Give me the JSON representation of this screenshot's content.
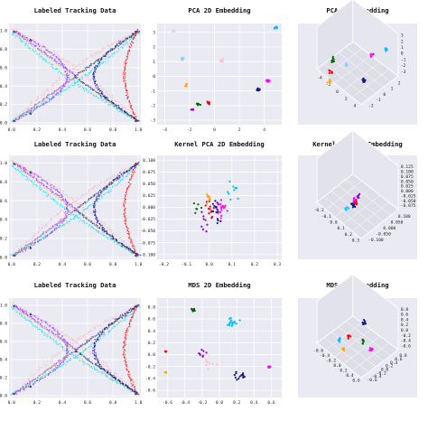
{
  "figure": {
    "background": "#ffffff",
    "panel_background": "#eaeaf2",
    "grid_color": "#ffffff"
  },
  "chart_data": [
    {
      "type": "scatter",
      "kind": "tracking",
      "title": "Labeled Tracking Data",
      "xticks": [
        "0.0",
        "0.2",
        "0.4",
        "0.6",
        "0.8",
        "1.0"
      ],
      "yticks": [
        "0.0",
        "0.2",
        "0.4",
        "0.6",
        "0.8",
        "1.0"
      ],
      "xlim": [
        -0.02,
        1.02
      ],
      "ylim": [
        -0.02,
        1.08
      ],
      "grid": true,
      "series": [
        {
          "color": "#ffb6c1",
          "path": "x-cross-outer"
        },
        {
          "color": "#00e5ee",
          "path": "x-cross-left-wing"
        },
        {
          "color": "#9b30ff",
          "path": "left-loop"
        },
        {
          "color": "#00008b",
          "path": "right-wing"
        },
        {
          "color": "#ff0000",
          "path": "right-edge"
        },
        {
          "color": "#c8c864",
          "path": "x-diagonal"
        },
        {
          "color": "#555555",
          "path": "corners"
        }
      ]
    },
    {
      "type": "scatter",
      "kind": "embed2d",
      "title": "PCA 2D Embedding",
      "xticks": [
        "-4",
        "-2",
        "0",
        "2",
        "4"
      ],
      "yticks": [
        "-3",
        "-2",
        "-1",
        "0",
        "1",
        "2",
        "3"
      ],
      "xlim": [
        -4.6,
        5.4
      ],
      "ylim": [
        -3.3,
        3.6
      ],
      "grid": true,
      "clusters": [
        {
          "color": "#00bfff",
          "x": 4.9,
          "y": 3.3,
          "n": 14
        },
        {
          "color": "#ff00ff",
          "x": 4.3,
          "y": -0.3,
          "n": 10
        },
        {
          "color": "#1a1a8c",
          "x": 3.5,
          "y": -0.9,
          "n": 18
        },
        {
          "color": "#e10000",
          "x": -0.5,
          "y": -1.8,
          "n": 8
        },
        {
          "color": "#006400",
          "x": -1.3,
          "y": -1.9,
          "n": 12
        },
        {
          "color": "#87cefa",
          "x": -2.6,
          "y": 1.2,
          "n": 8
        },
        {
          "color": "#dcdcdc",
          "x": -3.3,
          "y": 3.1,
          "n": 5
        },
        {
          "color": "#ffa500",
          "x": -2.2,
          "y": -0.6,
          "n": 6
        },
        {
          "color": "#9400d3",
          "x": -1.8,
          "y": -2.3,
          "n": 5
        },
        {
          "color": "#ffc0cb",
          "x": 0.6,
          "y": 1.1,
          "n": 8
        }
      ]
    },
    {
      "type": "scatter3d",
      "kind": "embed3d",
      "title": "PCA 3D Embedding",
      "xticks": [
        "-4",
        "-2",
        "0",
        "2",
        "4"
      ],
      "yticks": [
        "-2",
        "-1",
        "0",
        "1",
        "2"
      ],
      "zticks": [
        "3",
        "2",
        "1",
        "0",
        "-1",
        "-2",
        "-3"
      ],
      "clusters": [
        {
          "color": "#ff00ff",
          "x": 0.72,
          "y": 0.28,
          "n": 8
        },
        {
          "color": "#1a1a8c",
          "x": 0.62,
          "y": 0.62,
          "n": 14
        },
        {
          "color": "#006400",
          "x": 0.22,
          "y": 0.35,
          "n": 8
        },
        {
          "color": "#ff0000",
          "x": 0.2,
          "y": 0.5,
          "n": 6
        },
        {
          "color": "#00bfff",
          "x": 0.9,
          "y": 0.2,
          "n": 6
        },
        {
          "color": "#ffa500",
          "x": 0.18,
          "y": 0.62,
          "n": 5
        },
        {
          "color": "#87cefa",
          "x": 0.4,
          "y": 0.4,
          "n": 5
        }
      ]
    },
    {
      "type": "scatter",
      "kind": "tracking",
      "title": "Labeled Tracking Data",
      "xticks": [
        "0.0",
        "0.2",
        "0.4",
        "0.6",
        "0.8",
        "1.0"
      ],
      "yticks": [
        "0.0",
        "0.2",
        "0.4",
        "0.6",
        "0.8",
        "1.0"
      ],
      "xlim": [
        -0.02,
        1.02
      ],
      "ylim": [
        -0.02,
        1.08
      ],
      "grid": true
    },
    {
      "type": "scatter",
      "kind": "embed2d",
      "title": "Kernel PCA 2D Embedding",
      "xticks": [
        "-0.2",
        "-0.1",
        "0.0",
        "0.1",
        "0.2",
        "0.3"
      ],
      "yticks": [
        "-0.100",
        "-0.075",
        "-0.050",
        "-0.025",
        "0.000",
        "0.025",
        "0.050",
        "0.075",
        "0.100"
      ],
      "xlim": [
        -0.23,
        0.32
      ],
      "ylim": [
        -0.11,
        0.11
      ],
      "grid": true,
      "clusters": [
        {
          "color": "#ff00ff",
          "x": 0.05,
          "y": 0.0,
          "n": 18,
          "spread": 0.035
        },
        {
          "color": "#1a1a8c",
          "x": 0.03,
          "y": -0.01,
          "n": 16,
          "spread": 0.035
        },
        {
          "color": "#ff0000",
          "x": 0.0,
          "y": 0.0,
          "n": 12,
          "spread": 0.03
        },
        {
          "color": "#00bfff",
          "x": 0.1,
          "y": 0.04,
          "n": 10,
          "spread": 0.04
        },
        {
          "color": "#ffa500",
          "x": 0.0,
          "y": 0.02,
          "n": 8,
          "spread": 0.02
        },
        {
          "color": "#006400",
          "x": -0.05,
          "y": 0.0,
          "n": 6,
          "spread": 0.03
        },
        {
          "color": "#9400d3",
          "x": -0.02,
          "y": -0.03,
          "n": 8,
          "spread": 0.03
        }
      ]
    },
    {
      "type": "scatter3d",
      "kind": "embed3d",
      "title": "Kernel PCA 3D Embedding",
      "xticks": [
        "-0.2",
        "-0.1",
        "0.0",
        "0.1",
        "0.2",
        "0.3"
      ],
      "yticks": [
        "-0.100",
        "-0.050",
        "0.000",
        "0.050",
        "0.100"
      ],
      "zticks": [
        "0.125",
        "0.100",
        "0.075",
        "0.050",
        "0.025",
        "0.000",
        "-0.025",
        "-0.050",
        "-0.075"
      ],
      "clusters": [
        {
          "color": "#ff00ff",
          "x": 0.5,
          "y": 0.45,
          "n": 12
        },
        {
          "color": "#1a1a8c",
          "x": 0.48,
          "y": 0.5,
          "n": 12
        },
        {
          "color": "#ff0000",
          "x": 0.52,
          "y": 0.48,
          "n": 8
        },
        {
          "color": "#00bfff",
          "x": 0.4,
          "y": 0.55,
          "n": 5
        },
        {
          "color": "#9400d3",
          "x": 0.55,
          "y": 0.4,
          "n": 6
        }
      ]
    },
    {
      "type": "scatter",
      "kind": "tracking",
      "title": "Labeled Tracking Data",
      "xticks": [
        "0.0",
        "0.2",
        "0.4",
        "0.6",
        "0.8",
        "1.0"
      ],
      "yticks": [
        "0.0",
        "0.2",
        "0.4",
        "0.6",
        "0.8",
        "1.0"
      ],
      "xlim": [
        -0.02,
        1.02
      ],
      "ylim": [
        -0.02,
        1.08
      ],
      "grid": true
    },
    {
      "type": "scatter",
      "kind": "embed2d",
      "title": "MDS 2D Embedding",
      "xticks": [
        "-0.6",
        "-0.4",
        "-0.2",
        "0.0",
        "0.2",
        "0.4",
        "0.6"
      ],
      "yticks": [
        "-0.6",
        "-0.4",
        "-0.2",
        "0.0",
        "0.2",
        "0.4",
        "0.6",
        "0.8"
      ],
      "xlim": [
        -0.72,
        0.72
      ],
      "ylim": [
        -0.72,
        0.95
      ],
      "grid": true,
      "clusters": [
        {
          "color": "#006400",
          "x": -0.3,
          "y": 0.75,
          "n": 14,
          "spread": 0.03
        },
        {
          "color": "#00bfff",
          "x": 0.15,
          "y": 0.55,
          "n": 16,
          "spread": 0.12
        },
        {
          "color": "#ff00ff",
          "x": 0.58,
          "y": -0.2,
          "n": 10,
          "spread": 0.03
        },
        {
          "color": "#1a1a8c",
          "x": 0.25,
          "y": -0.35,
          "n": 16,
          "spread": 0.12
        },
        {
          "color": "#ff0000",
          "x": -0.62,
          "y": 0.05,
          "n": 6,
          "spread": 0.02
        },
        {
          "color": "#ffa500",
          "x": -0.62,
          "y": -0.3,
          "n": 6,
          "spread": 0.02
        },
        {
          "color": "#9400d3",
          "x": -0.2,
          "y": 0.02,
          "n": 8,
          "spread": 0.1
        },
        {
          "color": "#ffc0cb",
          "x": -0.1,
          "y": -0.15,
          "n": 8,
          "spread": 0.12
        }
      ]
    },
    {
      "type": "scatter3d",
      "kind": "embed3d",
      "title": "MDS 3D Embedding",
      "xticks": [
        "-0.6",
        "-0.4",
        "-0.2",
        "0.0",
        "0.2",
        "0.4",
        "0.6"
      ],
      "yticks": [
        "-0.6",
        "-0.4",
        "-0.2",
        "0.0",
        "0.2",
        "0.4",
        "0.6",
        "0.8"
      ],
      "zticks": [
        "0.8",
        "0.6",
        "0.4",
        "0.2",
        "0.0",
        "-0.2",
        "-0.4",
        "-0.6"
      ],
      "clusters": [
        {
          "color": "#1a1a8c",
          "x": 0.62,
          "y": 0.2,
          "n": 10
        },
        {
          "color": "#ff00ff",
          "x": 0.72,
          "y": 0.55,
          "n": 8
        },
        {
          "color": "#00bfff",
          "x": 0.3,
          "y": 0.42,
          "n": 8
        },
        {
          "color": "#006400",
          "x": 0.6,
          "y": 0.45,
          "n": 6
        },
        {
          "color": "#ff0000",
          "x": 0.42,
          "y": 0.38,
          "n": 5
        },
        {
          "color": "#ffa500",
          "x": 0.35,
          "y": 0.55,
          "n": 5
        }
      ]
    }
  ]
}
